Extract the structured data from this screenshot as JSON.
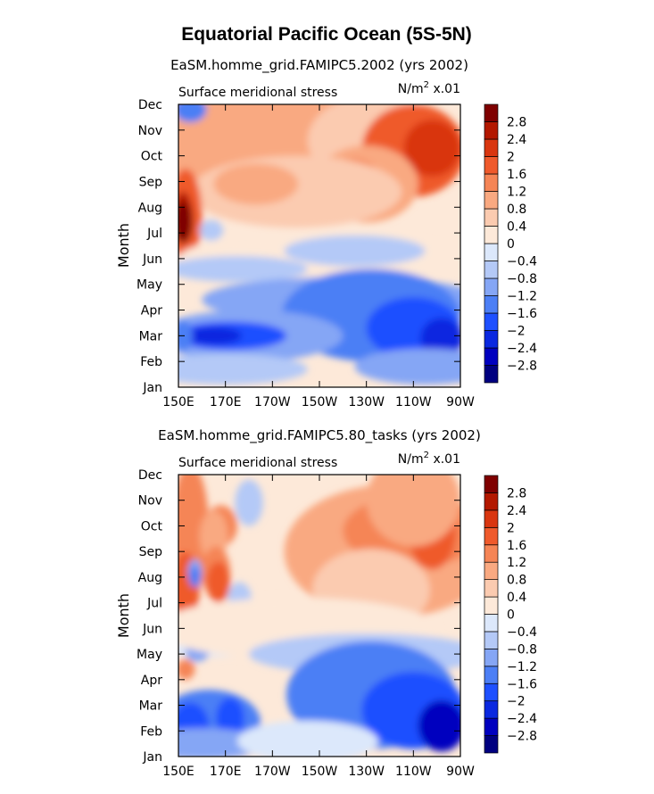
{
  "title": "Equatorial Pacific Ocean (5S-5N)",
  "chart_data": [
    {
      "type": "heatmap",
      "title": "EaSM.homme_grid.FAMIPC5.2002 (yrs 2002)",
      "left_label": "Surface meridional stress",
      "right_label": "N/m",
      "unit_sup": "2",
      "unit_suffix": " x.01",
      "xlabel": "",
      "ylabel": "Month",
      "x_ticks": [
        "150E",
        "170E",
        "170W",
        "150W",
        "130W",
        "110W",
        "90W"
      ],
      "y_ticks": [
        "Jan",
        "Feb",
        "Mar",
        "Apr",
        "May",
        "Jun",
        "Jul",
        "Aug",
        "Sep",
        "Oct",
        "Nov",
        "Dec"
      ],
      "xlim": [
        150,
        270
      ],
      "ylim": [
        1,
        12
      ],
      "colorbar_labels": [
        "-2.8",
        "-2.4",
        "-2",
        "-1.6",
        "-1.2",
        "-0.8",
        "-0.4",
        "0",
        "0.4",
        "0.8",
        "1.2",
        "1.6",
        "2",
        "2.4",
        "2.8"
      ]
    },
    {
      "type": "heatmap",
      "title": "EaSM.homme_grid.FAMIPC5.80_tasks (yrs 2002)",
      "left_label": "Surface meridional stress",
      "right_label": "N/m",
      "unit_sup": "2",
      "unit_suffix": " x.01",
      "xlabel": "",
      "ylabel": "Month",
      "x_ticks": [
        "150E",
        "170E",
        "170W",
        "150W",
        "130W",
        "110W",
        "90W"
      ],
      "y_ticks": [
        "Jan",
        "Feb",
        "Mar",
        "Apr",
        "May",
        "Jun",
        "Jul",
        "Aug",
        "Sep",
        "Oct",
        "Nov",
        "Dec"
      ],
      "xlim": [
        150,
        270
      ],
      "ylim": [
        1,
        12
      ],
      "colorbar_labels": [
        "-2.8",
        "-2.4",
        "-2",
        "-1.6",
        "-1.2",
        "-0.8",
        "-0.4",
        "0",
        "0.4",
        "0.8",
        "1.2",
        "1.6",
        "2",
        "2.4",
        "2.8"
      ]
    }
  ],
  "colormap": [
    "#000080",
    "#0000bf",
    "#0a28e0",
    "#1e50ff",
    "#4c7ff5",
    "#85a6f5",
    "#b4c9f7",
    "#dce8fb",
    "#fde9d9",
    "#fbcbb0",
    "#f9a981",
    "#f58556",
    "#ef5a2c",
    "#d93610",
    "#b31800",
    "#7f0000"
  ]
}
